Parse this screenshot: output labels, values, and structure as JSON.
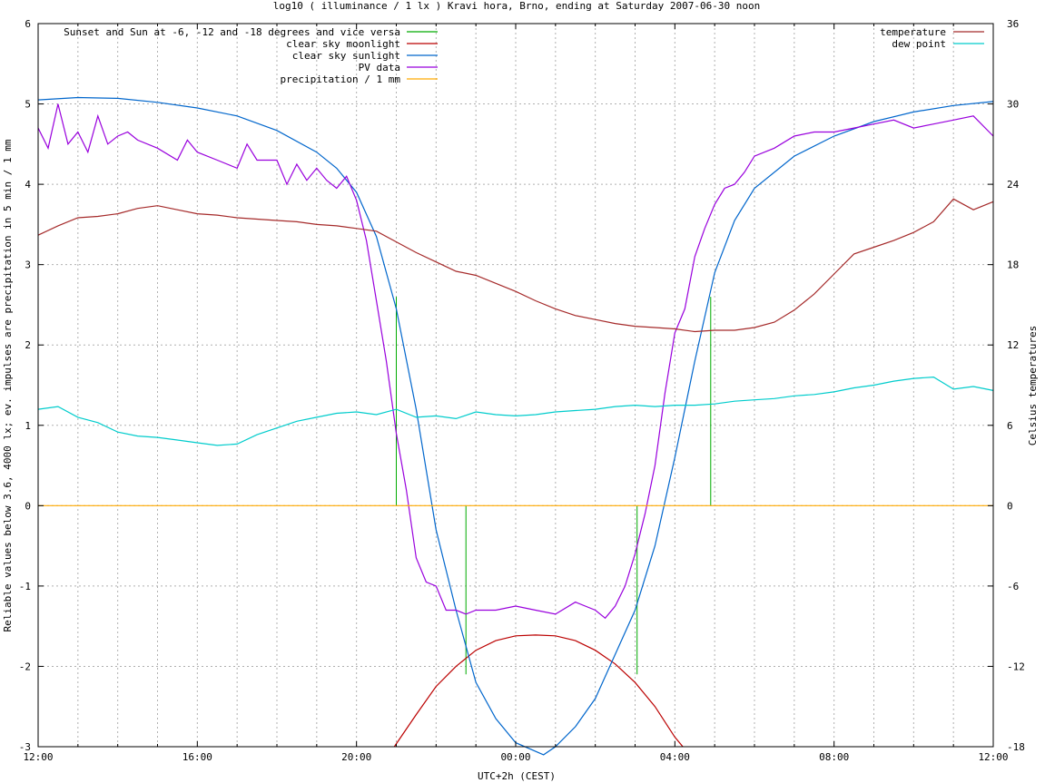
{
  "chart_data": {
    "type": "line",
    "title": "log10 ( illuminance / 1 lx ) Kravi hora, Brno, ending at Saturday 2007-06-30 noon",
    "xlabel": "UTC+2h (CEST)",
    "ylabel": "Reliable values below 3.6, 4000 lx; ev. impulses are precipitation in 5 min / 1 mm",
    "y2label": "Celsius temperatures",
    "x_unit": "hours since 2007-06-29 12:00 (UTC+2h)",
    "xlim": [
      0,
      24
    ],
    "ylim": [
      -3,
      6
    ],
    "y2lim": [
      -18,
      36
    ],
    "grid": true,
    "x_ticks": [
      {
        "x": 0,
        "label": "12:00"
      },
      {
        "x": 4,
        "label": "16:00"
      },
      {
        "x": 8,
        "label": "20:00"
      },
      {
        "x": 12,
        "label": "00:00"
      },
      {
        "x": 16,
        "label": "04:00"
      },
      {
        "x": 20,
        "label": "08:00"
      },
      {
        "x": 24,
        "label": "12:00"
      }
    ],
    "y_ticks": [
      -3,
      -2,
      -1,
      0,
      1,
      2,
      3,
      4,
      5,
      6
    ],
    "y2_ticks": [
      -18,
      -12,
      -6,
      0,
      6,
      12,
      18,
      24,
      30,
      36
    ],
    "legend_left": "top-left",
    "legend_right": "top-right",
    "series": [
      {
        "name": "Sunset and Sun at -6, -12 and -18 degrees and vice versa",
        "axis": "y",
        "color": "#00aa00",
        "style": "impulses",
        "x": [
          9.0,
          9.75,
          10.75,
          15.05,
          16.15,
          16.9
        ],
        "y": [
          2.6,
          0,
          0,
          0,
          0,
          2.6
        ],
        "y0": [
          0,
          0,
          -2.1,
          -2.1,
          0,
          0
        ]
      },
      {
        "name": "clear sky moonlight",
        "axis": "y",
        "color": "#bb0000",
        "style": "line",
        "x": [
          8.95,
          9.5,
          10,
          10.5,
          11,
          11.5,
          12,
          12.5,
          13,
          13.5,
          14,
          14.5,
          15,
          15.5,
          16,
          16.2
        ],
        "y": [
          -3.0,
          -2.6,
          -2.25,
          -2.0,
          -1.8,
          -1.68,
          -1.62,
          -1.61,
          -1.62,
          -1.68,
          -1.8,
          -1.97,
          -2.2,
          -2.5,
          -2.88,
          -3.0
        ]
      },
      {
        "name": "clear sky sunlight",
        "axis": "y",
        "color": "#0066cc",
        "style": "line",
        "x": [
          0,
          1,
          2,
          3,
          4,
          5,
          6,
          7,
          7.5,
          8,
          8.5,
          9,
          9.5,
          10,
          10.5,
          11,
          11.5,
          12,
          12.7,
          13,
          13.5,
          14,
          14.5,
          15,
          15.5,
          16,
          16.5,
          17,
          17.5,
          18,
          19,
          20,
          21,
          22,
          23,
          24
        ],
        "y": [
          5.05,
          5.08,
          5.07,
          5.02,
          4.95,
          4.85,
          4.67,
          4.4,
          4.2,
          3.9,
          3.35,
          2.45,
          1.2,
          -0.3,
          -1.3,
          -2.2,
          -2.65,
          -2.95,
          -3.1,
          -3.0,
          -2.75,
          -2.4,
          -1.85,
          -1.3,
          -0.5,
          0.6,
          1.8,
          2.9,
          3.55,
          3.95,
          4.35,
          4.6,
          4.78,
          4.9,
          4.98,
          5.03
        ]
      },
      {
        "name": "PV data",
        "axis": "y",
        "color": "#9900dd",
        "style": "line",
        "x": [
          0,
          0.25,
          0.5,
          0.75,
          1.0,
          1.25,
          1.5,
          1.75,
          2.0,
          2.25,
          2.5,
          3.0,
          3.5,
          3.75,
          4.0,
          4.5,
          5.0,
          5.25,
          5.5,
          6.0,
          6.25,
          6.5,
          6.75,
          7.0,
          7.25,
          7.5,
          7.75,
          8.0,
          8.25,
          8.5,
          8.75,
          9.0,
          9.25,
          9.5,
          9.75,
          10.0,
          10.25,
          10.5,
          10.75,
          11.0,
          11.5,
          12.0,
          12.5,
          13.0,
          13.5,
          14.0,
          14.25,
          14.5,
          14.75,
          15.0,
          15.25,
          15.5,
          15.75,
          16.0,
          16.25,
          16.5,
          16.75,
          17.0,
          17.25,
          17.5,
          17.75,
          18.0,
          18.5,
          19.0,
          19.5,
          20.0,
          20.5,
          21.0,
          21.5,
          22.0,
          22.5,
          23.0,
          23.5,
          24.0
        ],
        "y": [
          4.7,
          4.45,
          5.0,
          4.5,
          4.65,
          4.4,
          4.85,
          4.5,
          4.6,
          4.65,
          4.55,
          4.45,
          4.3,
          4.55,
          4.4,
          4.3,
          4.2,
          4.5,
          4.3,
          4.3,
          4.0,
          4.25,
          4.05,
          4.2,
          4.05,
          3.95,
          4.1,
          3.8,
          3.3,
          2.55,
          1.8,
          0.9,
          0.2,
          -0.65,
          -0.95,
          -1.0,
          -1.3,
          -1.3,
          -1.35,
          -1.3,
          -1.3,
          -1.25,
          -1.3,
          -1.35,
          -1.2,
          -1.3,
          -1.4,
          -1.25,
          -1.0,
          -0.6,
          -0.1,
          0.5,
          1.4,
          2.15,
          2.45,
          3.1,
          3.45,
          3.75,
          3.95,
          4.0,
          4.15,
          4.35,
          4.45,
          4.6,
          4.65,
          4.65,
          4.7,
          4.75,
          4.8,
          4.7,
          4.75,
          4.8,
          4.85,
          4.6
        ]
      },
      {
        "name": "precipitation / 1 mm",
        "axis": "y",
        "color": "#ffaa00",
        "style": "line",
        "x": [
          0,
          24
        ],
        "y": [
          0,
          0
        ]
      },
      {
        "name": "temperature",
        "axis": "y2",
        "color": "#a52a2a",
        "style": "line",
        "x": [
          0,
          0.5,
          1,
          1.5,
          2,
          2.5,
          3,
          3.5,
          4,
          4.5,
          5,
          5.5,
          6,
          6.5,
          7,
          7.5,
          8,
          8.5,
          9,
          9.5,
          10,
          10.5,
          11,
          11.5,
          12,
          12.5,
          13,
          13.5,
          14,
          14.5,
          15,
          15.5,
          16,
          16.5,
          17,
          17.5,
          18,
          18.5,
          19,
          19.5,
          20,
          20.5,
          21,
          21.5,
          22,
          22.5,
          23,
          23.5,
          24
        ],
        "y": [
          20.2,
          20.9,
          21.5,
          21.6,
          21.8,
          22.2,
          22.4,
          22.1,
          21.8,
          21.7,
          21.5,
          21.4,
          21.3,
          21.2,
          21.0,
          20.9,
          20.7,
          20.5,
          19.7,
          18.9,
          18.2,
          17.5,
          17.2,
          16.6,
          16.0,
          15.3,
          14.7,
          14.2,
          13.9,
          13.6,
          13.4,
          13.3,
          13.2,
          13.0,
          13.1,
          13.1,
          13.3,
          13.7,
          14.6,
          15.8,
          17.3,
          18.8,
          19.3,
          19.8,
          20.4,
          21.2,
          22.9,
          22.1,
          22.7
        ]
      },
      {
        "name": "dew point",
        "axis": "y2",
        "color": "#00cccc",
        "style": "line",
        "x": [
          0,
          0.5,
          1,
          1.5,
          2,
          2.5,
          3,
          3.5,
          4,
          4.5,
          5,
          5.5,
          6,
          6.5,
          7,
          7.5,
          8,
          8.5,
          9,
          9.5,
          10,
          10.5,
          11,
          11.5,
          12,
          12.5,
          13,
          13.5,
          14,
          14.5,
          15,
          15.5,
          16,
          16.5,
          17,
          17.5,
          18,
          18.5,
          19,
          19.5,
          20,
          20.5,
          21,
          21.5,
          22,
          22.5,
          23,
          23.5,
          24
        ],
        "y": [
          7.2,
          7.4,
          6.6,
          6.2,
          5.5,
          5.2,
          5.1,
          4.9,
          4.7,
          4.5,
          4.6,
          5.3,
          5.8,
          6.3,
          6.6,
          6.9,
          7.0,
          6.8,
          7.2,
          6.6,
          6.7,
          6.5,
          7.0,
          6.8,
          6.7,
          6.8,
          7.0,
          7.1,
          7.2,
          7.4,
          7.5,
          7.4,
          7.5,
          7.5,
          7.6,
          7.8,
          7.9,
          8.0,
          8.2,
          8.3,
          8.5,
          8.8,
          9.0,
          9.3,
          9.5,
          9.6,
          8.7,
          8.9,
          8.6
        ]
      }
    ]
  }
}
